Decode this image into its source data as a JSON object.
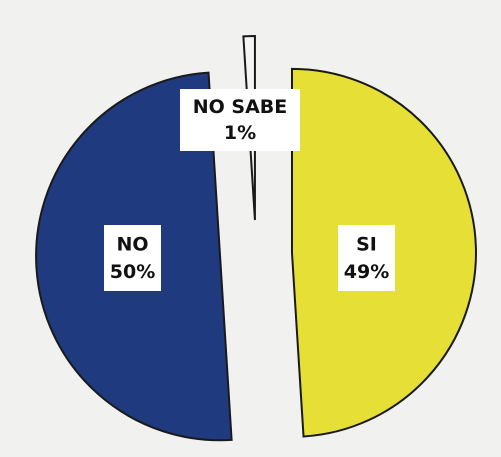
{
  "chart_data": {
    "type": "pie",
    "categories": [
      "SI",
      "NO",
      "NO SABE"
    ],
    "values": [
      49,
      50,
      1
    ],
    "value_labels": [
      "49%",
      "50%",
      "1%"
    ],
    "colors": [
      "#e6df35",
      "#1f3a7e",
      "#f4f4f4"
    ]
  }
}
